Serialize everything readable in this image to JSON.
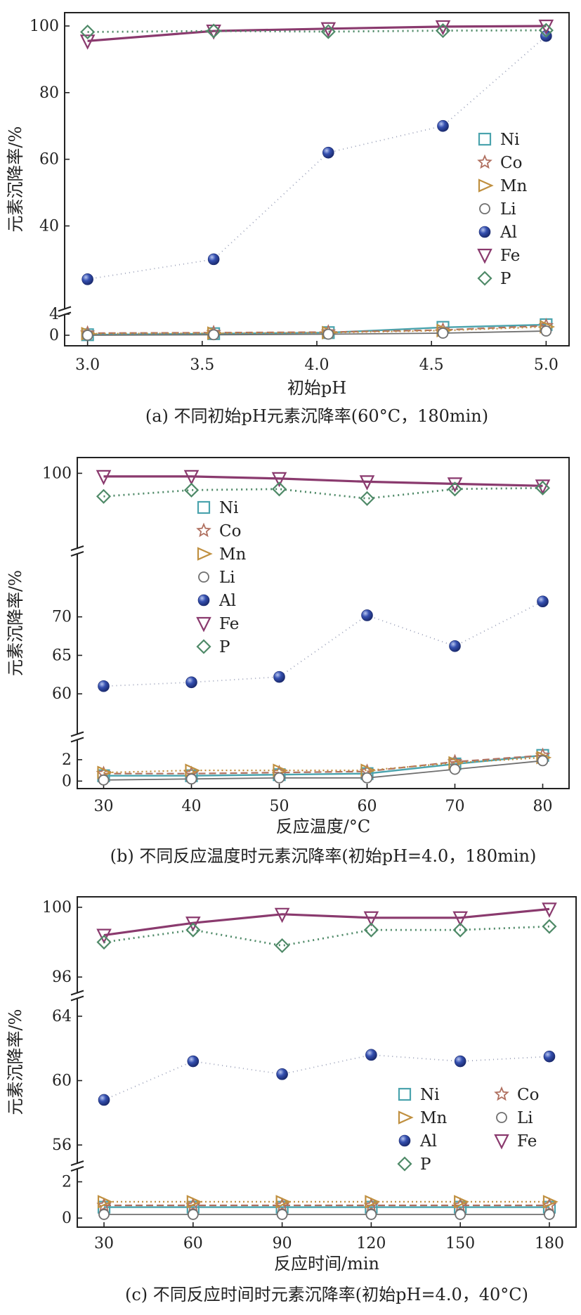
{
  "colors": {
    "Ni": "#4aa3ad",
    "Co": "#b07060",
    "Mn": "#c09040",
    "Li": "#707070",
    "Al": "#2a3f9a",
    "Fe": "#8a3a6e",
    "P": "#4f8a68",
    "axis": "#222222"
  },
  "chart_data": [
    {
      "type": "line",
      "caption": "(a) 不同初始pH元素沉降率(60°C，180min)",
      "xlabel": "初始pH",
      "ylabel": "元素沉降率/%",
      "x": [
        3.0,
        3.55,
        4.05,
        4.55,
        5.0
      ],
      "xticks": [
        "3.0",
        "3.5",
        "4.0",
        "4.5",
        "5.0"
      ],
      "xtick_values": [
        3.0,
        3.5,
        4.0,
        4.5,
        5.0
      ],
      "xlim": [
        2.9,
        5.1
      ],
      "y_break": true,
      "y_segments": [
        {
          "range": [
            -2,
            4
          ],
          "ticks": [
            "0",
            "4"
          ],
          "tick_values": [
            0,
            4
          ]
        },
        {
          "range": [
            15,
            104
          ],
          "ticks": [
            "40",
            "60",
            "80",
            "100"
          ],
          "tick_values": [
            40,
            60,
            80,
            100
          ]
        }
      ],
      "legend": {
        "position": "right",
        "entries": [
          "Ni",
          "Co",
          "Mn",
          "Li",
          "Al",
          "Fe",
          "P"
        ]
      },
      "series": [
        {
          "name": "Ni",
          "values": [
            0.1,
            0.3,
            0.5,
            1.5,
            2.0
          ]
        },
        {
          "name": "Co",
          "values": [
            0.4,
            0.5,
            0.6,
            1.0,
            1.8
          ]
        },
        {
          "name": "Mn",
          "values": [
            0.3,
            0.4,
            0.5,
            0.9,
            1.6
          ]
        },
        {
          "name": "Li",
          "values": [
            0.0,
            0.1,
            0.2,
            0.4,
            0.8
          ]
        },
        {
          "name": "Al",
          "values": [
            24,
            30,
            62,
            70,
            97
          ]
        },
        {
          "name": "Fe",
          "values": [
            95.5,
            98.5,
            99.2,
            99.8,
            100
          ]
        },
        {
          "name": "P",
          "values": [
            98.2,
            98.5,
            98.3,
            98.6,
            98.7
          ]
        }
      ]
    },
    {
      "type": "line",
      "caption": "(b) 不同反应温度时元素沉降率(初始pH=4.0，180min)",
      "xlabel": "反应温度/°C",
      "ylabel": "元素沉降率/%",
      "x": [
        30,
        40,
        50,
        60,
        70,
        80
      ],
      "xticks": [
        "30",
        "40",
        "50",
        "60",
        "70",
        "80"
      ],
      "xtick_values": [
        30,
        40,
        50,
        60,
        70,
        80
      ],
      "xlim": [
        27,
        83
      ],
      "y_break": true,
      "y_segments": [
        {
          "range": [
            -0.7,
            3.7
          ],
          "ticks": [
            "0",
            "2"
          ],
          "tick_values": [
            0,
            2
          ]
        },
        {
          "range": [
            55,
            78
          ],
          "ticks": [
            "60",
            "65",
            "70"
          ],
          "tick_values": [
            60,
            65,
            70
          ]
        },
        {
          "range": [
            93,
            101.5
          ],
          "ticks": [
            "100"
          ],
          "tick_values": [
            100
          ]
        }
      ],
      "legend": {
        "position": "upper-left",
        "entries": [
          "Ni",
          "Co",
          "Mn",
          "Li",
          "Al",
          "Fe",
          "P"
        ]
      },
      "series": [
        {
          "name": "Ni",
          "values": [
            0.5,
            0.5,
            0.6,
            0.7,
            1.6,
            2.4
          ]
        },
        {
          "name": "Co",
          "values": [
            0.7,
            0.7,
            0.8,
            0.9,
            1.8,
            2.4
          ]
        },
        {
          "name": "Mn",
          "values": [
            0.8,
            1.0,
            1.0,
            1.0,
            1.7,
            2.2
          ]
        },
        {
          "name": "Li",
          "values": [
            0.1,
            0.2,
            0.3,
            0.3,
            1.1,
            1.9
          ]
        },
        {
          "name": "Al",
          "values": [
            61,
            61.5,
            62.2,
            70.2,
            66.2,
            72
          ]
        },
        {
          "name": "Fe",
          "values": [
            99.7,
            99.7,
            99.5,
            99.2,
            99.0,
            98.8
          ]
        },
        {
          "name": "P",
          "values": [
            97.8,
            98.4,
            98.5,
            97.6,
            98.5,
            98.6
          ]
        }
      ]
    },
    {
      "type": "line",
      "caption": "(c) 不同反应时间时元素沉降率(初始pH=4.0，40°C)",
      "xlabel": "反应时间/min",
      "ylabel": "元素沉降率/%",
      "x": [
        30,
        60,
        90,
        120,
        150,
        180
      ],
      "xticks": [
        "30",
        "60",
        "90",
        "120",
        "150",
        "180"
      ],
      "xtick_values": [
        30,
        60,
        90,
        120,
        150,
        180
      ],
      "xlim": [
        21,
        189
      ],
      "y_break": true,
      "y_segments": [
        {
          "range": [
            -0.5,
            2.6
          ],
          "ticks": [
            "0",
            "2"
          ],
          "tick_values": [
            0,
            2
          ]
        },
        {
          "range": [
            55,
            65
          ],
          "ticks": [
            "56",
            "60",
            "64"
          ],
          "tick_values": [
            56,
            60,
            64
          ]
        },
        {
          "range": [
            95.2,
            100.6
          ],
          "ticks": [
            "96",
            "100"
          ],
          "tick_values": [
            96,
            100
          ]
        }
      ],
      "legend": {
        "position": "lower-right",
        "entries": [
          "Ni",
          "Co",
          "Mn",
          "Li",
          "Al",
          "Fe",
          "P"
        ]
      },
      "series": [
        {
          "name": "Ni",
          "values": [
            0.6,
            0.6,
            0.6,
            0.6,
            0.6,
            0.6
          ]
        },
        {
          "name": "Co",
          "values": [
            0.7,
            0.7,
            0.7,
            0.7,
            0.7,
            0.7
          ]
        },
        {
          "name": "Mn",
          "values": [
            0.9,
            0.9,
            0.9,
            0.9,
            0.9,
            0.9
          ]
        },
        {
          "name": "Li",
          "values": [
            0.2,
            0.2,
            0.2,
            0.2,
            0.2,
            0.2
          ]
        },
        {
          "name": "Al",
          "values": [
            58.8,
            61.2,
            60.4,
            61.6,
            61.2,
            61.5
          ]
        },
        {
          "name": "Fe",
          "values": [
            98.4,
            99.1,
            99.6,
            99.4,
            99.4,
            99.9
          ]
        },
        {
          "name": "P",
          "values": [
            98.0,
            98.7,
            97.8,
            98.7,
            98.7,
            98.9
          ]
        }
      ]
    }
  ]
}
